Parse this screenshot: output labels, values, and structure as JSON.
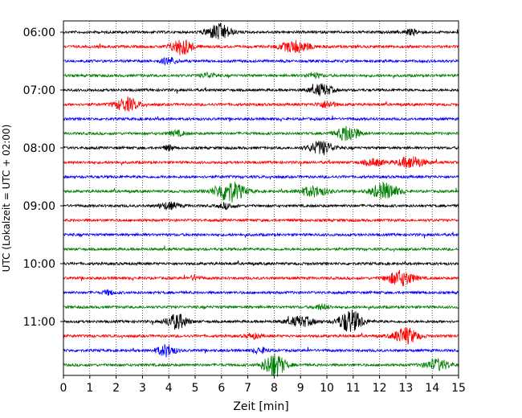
{
  "chart_data": {
    "type": "line",
    "title": "",
    "xlabel": "Zeit  [min]",
    "ylabel": "UTC (Lokalzeit = UTC + 02:00)",
    "xlim": [
      0,
      15
    ],
    "x_ticks": [
      "0",
      "1",
      "2",
      "3",
      "4",
      "5",
      "6",
      "7",
      "8",
      "9",
      "10",
      "11",
      "12",
      "13",
      "14",
      "15"
    ],
    "y_ticks": [
      "06:00",
      "07:00",
      "08:00",
      "09:00",
      "10:00",
      "11:00"
    ],
    "grid": "vertical dotted lines at each minute",
    "trace_colors": [
      "#000000",
      "#ff0000",
      "#0000ff",
      "#008000"
    ],
    "rows": [
      {
        "hour": "06:00",
        "color": "#000000",
        "events": [
          {
            "t": 5.9,
            "amp": 10,
            "w": 0.45
          },
          {
            "t": 13.2,
            "amp": 3,
            "w": 0.3
          }
        ]
      },
      {
        "hour": "06:15",
        "color": "#ff0000",
        "events": [
          {
            "t": 4.5,
            "amp": 10,
            "w": 0.4
          },
          {
            "t": 8.8,
            "amp": 7,
            "w": 0.55
          }
        ]
      },
      {
        "hour": "06:30",
        "color": "#0000ff",
        "events": [
          {
            "t": 4.0,
            "amp": 4,
            "w": 0.3
          }
        ]
      },
      {
        "hour": "06:45",
        "color": "#008000",
        "events": [
          {
            "t": 5.5,
            "amp": 3,
            "w": 0.3
          },
          {
            "t": 9.5,
            "amp": 3,
            "w": 0.3
          }
        ]
      },
      {
        "hour": "07:00",
        "color": "#000000",
        "events": [
          {
            "t": 9.8,
            "amp": 7,
            "w": 0.4
          }
        ]
      },
      {
        "hour": "07:15",
        "color": "#ff0000",
        "events": [
          {
            "t": 2.4,
            "amp": 8,
            "w": 0.45
          },
          {
            "t": 10.0,
            "amp": 4,
            "w": 0.35
          }
        ]
      },
      {
        "hour": "07:30",
        "color": "#0000ff",
        "events": []
      },
      {
        "hour": "07:45",
        "color": "#008000",
        "events": [
          {
            "t": 10.8,
            "amp": 10,
            "w": 0.4
          },
          {
            "t": 4.3,
            "amp": 3,
            "w": 0.3
          }
        ]
      },
      {
        "hour": "08:00",
        "color": "#000000",
        "events": [
          {
            "t": 9.8,
            "amp": 8,
            "w": 0.45
          },
          {
            "t": 4.0,
            "amp": 3,
            "w": 0.2
          }
        ]
      },
      {
        "hour": "08:15",
        "color": "#ff0000",
        "events": [
          {
            "t": 13.2,
            "amp": 7,
            "w": 0.5
          },
          {
            "t": 11.8,
            "amp": 4,
            "w": 0.4
          }
        ]
      },
      {
        "hour": "08:30",
        "color": "#0000ff",
        "events": []
      },
      {
        "hour": "08:45",
        "color": "#008000",
        "events": [
          {
            "t": 6.3,
            "amp": 13,
            "w": 0.55
          },
          {
            "t": 9.5,
            "amp": 6,
            "w": 0.55
          },
          {
            "t": 12.2,
            "amp": 10,
            "w": 0.5
          }
        ]
      },
      {
        "hour": "09:00",
        "color": "#000000",
        "events": [
          {
            "t": 4.0,
            "amp": 4,
            "w": 0.4
          },
          {
            "t": 6.2,
            "amp": 3,
            "w": 0.3
          }
        ]
      },
      {
        "hour": "09:15",
        "color": "#ff0000",
        "events": []
      },
      {
        "hour": "09:30",
        "color": "#0000ff",
        "events": []
      },
      {
        "hour": "09:45",
        "color": "#008000",
        "events": []
      },
      {
        "hour": "10:00",
        "color": "#000000",
        "events": []
      },
      {
        "hour": "10:15",
        "color": "#ff0000",
        "events": [
          {
            "t": 12.8,
            "amp": 9,
            "w": 0.5
          },
          {
            "t": 5.0,
            "amp": 3,
            "w": 0.2
          }
        ]
      },
      {
        "hour": "10:30",
        "color": "#0000ff",
        "events": [
          {
            "t": 1.7,
            "amp": 3,
            "w": 0.2
          }
        ]
      },
      {
        "hour": "10:45",
        "color": "#008000",
        "events": [
          {
            "t": 9.8,
            "amp": 3,
            "w": 0.3
          }
        ]
      },
      {
        "hour": "11:00",
        "color": "#000000",
        "events": [
          {
            "t": 4.3,
            "amp": 9,
            "w": 0.4
          },
          {
            "t": 9.0,
            "amp": 6,
            "w": 0.5
          },
          {
            "t": 10.9,
            "amp": 14,
            "w": 0.45
          }
        ]
      },
      {
        "hour": "11:15",
        "color": "#ff0000",
        "events": [
          {
            "t": 13.0,
            "amp": 10,
            "w": 0.45
          },
          {
            "t": 7.2,
            "amp": 3,
            "w": 0.3
          }
        ]
      },
      {
        "hour": "11:30",
        "color": "#0000ff",
        "events": [
          {
            "t": 3.9,
            "amp": 7,
            "w": 0.35
          },
          {
            "t": 7.5,
            "amp": 3,
            "w": 0.3
          }
        ]
      },
      {
        "hour": "11:45",
        "color": "#008000",
        "events": [
          {
            "t": 8.0,
            "amp": 15,
            "w": 0.4
          },
          {
            "t": 14.2,
            "amp": 7,
            "w": 0.45
          }
        ]
      }
    ]
  }
}
